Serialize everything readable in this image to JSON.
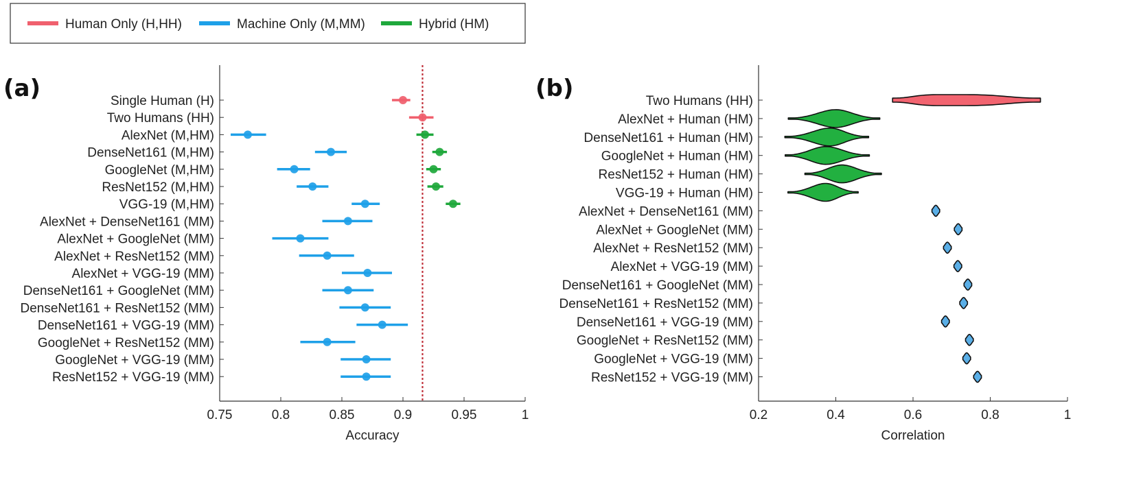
{
  "legend": {
    "placement": "top-left",
    "entries": [
      {
        "label": "Human Only (H,HH)",
        "color": "#f0606e"
      },
      {
        "label": "Machine Only (M,MM)",
        "color": "#1ea0e8"
      },
      {
        "label": "Hybrid (HM)",
        "color": "#1fa83c"
      }
    ]
  },
  "chart_data": [
    {
      "panel": "(a)",
      "type": "scatter",
      "subtype": "dot-with-error-bars",
      "xlabel": "Accuracy",
      "xlim": [
        0.75,
        1
      ],
      "xticks": [
        "0.75",
        "0.8",
        "0.85",
        "0.9",
        "0.95",
        "1"
      ],
      "reference_line": {
        "x": 0.916,
        "color": "#c0303a",
        "style": "dotted"
      },
      "categories": [
        "Single Human (H)",
        "Two Humans (HH)",
        "AlexNet (M,HM)",
        "DenseNet161 (M,HM)",
        "GoogleNet (M,HM)",
        "ResNet152 (M,HM)",
        "VGG-19 (M,HM)",
        "AlexNet + DenseNet161 (MM)",
        "AlexNet + GoogleNet (MM)",
        "AlexNet + ResNet152 (MM)",
        "AlexNet + VGG-19 (MM)",
        "DenseNet161 + GoogleNet (MM)",
        "DenseNet161 + ResNet152 (MM)",
        "DenseNet161 + VGG-19 (MM)",
        "GoogleNet + ResNet152 (MM)",
        "GoogleNet + VGG-19 (MM)",
        "ResNet152 + VGG-19 (MM)"
      ],
      "points": [
        {
          "row": 0,
          "group": "human",
          "x": 0.9,
          "lo": 0.891,
          "hi": 0.906
        },
        {
          "row": 1,
          "group": "human",
          "x": 0.916,
          "lo": 0.905,
          "hi": 0.925
        },
        {
          "row": 2,
          "group": "machine",
          "x": 0.773,
          "lo": 0.759,
          "hi": 0.788
        },
        {
          "row": 2,
          "group": "hybrid",
          "x": 0.918,
          "lo": 0.911,
          "hi": 0.925
        },
        {
          "row": 3,
          "group": "machine",
          "x": 0.841,
          "lo": 0.828,
          "hi": 0.854
        },
        {
          "row": 3,
          "group": "hybrid",
          "x": 0.93,
          "lo": 0.924,
          "hi": 0.936
        },
        {
          "row": 4,
          "group": "machine",
          "x": 0.811,
          "lo": 0.797,
          "hi": 0.824
        },
        {
          "row": 4,
          "group": "hybrid",
          "x": 0.925,
          "lo": 0.919,
          "hi": 0.931
        },
        {
          "row": 5,
          "group": "machine",
          "x": 0.826,
          "lo": 0.813,
          "hi": 0.839
        },
        {
          "row": 5,
          "group": "hybrid",
          "x": 0.927,
          "lo": 0.92,
          "hi": 0.933
        },
        {
          "row": 6,
          "group": "machine",
          "x": 0.869,
          "lo": 0.858,
          "hi": 0.881
        },
        {
          "row": 6,
          "group": "hybrid",
          "x": 0.941,
          "lo": 0.935,
          "hi": 0.947
        },
        {
          "row": 7,
          "group": "machine",
          "x": 0.855,
          "lo": 0.834,
          "hi": 0.875
        },
        {
          "row": 8,
          "group": "machine",
          "x": 0.816,
          "lo": 0.793,
          "hi": 0.839
        },
        {
          "row": 9,
          "group": "machine",
          "x": 0.838,
          "lo": 0.815,
          "hi": 0.86
        },
        {
          "row": 10,
          "group": "machine",
          "x": 0.871,
          "lo": 0.85,
          "hi": 0.891
        },
        {
          "row": 11,
          "group": "machine",
          "x": 0.855,
          "lo": 0.834,
          "hi": 0.876
        },
        {
          "row": 12,
          "group": "machine",
          "x": 0.869,
          "lo": 0.848,
          "hi": 0.89
        },
        {
          "row": 13,
          "group": "machine",
          "x": 0.883,
          "lo": 0.862,
          "hi": 0.904
        },
        {
          "row": 14,
          "group": "machine",
          "x": 0.838,
          "lo": 0.816,
          "hi": 0.861
        },
        {
          "row": 15,
          "group": "machine",
          "x": 0.87,
          "lo": 0.849,
          "hi": 0.89
        },
        {
          "row": 16,
          "group": "machine",
          "x": 0.87,
          "lo": 0.849,
          "hi": 0.89
        }
      ]
    },
    {
      "panel": "(b)",
      "type": "violin",
      "xlabel": "Correlation",
      "xlim": [
        0.2,
        1
      ],
      "xticks": [
        "0.2",
        "0.4",
        "0.6",
        "0.8",
        "1"
      ],
      "categories": [
        "Two Humans (HH)",
        "AlexNet + Human (HM)",
        "DenseNet161 + Human (HM)",
        "GoogleNet + Human (HM)",
        "ResNet152 + Human (HM)",
        "VGG-19 + Human (HM)",
        "AlexNet + DenseNet161 (MM)",
        "AlexNet + GoogleNet (MM)",
        "AlexNet + ResNet152 (MM)",
        "AlexNet + VGG-19 (MM)",
        "DenseNet161 + GoogleNet (MM)",
        "DenseNet161 + ResNet152 (MM)",
        "DenseNet161 + VGG-19 (MM)",
        "GoogleNet + ResNet152 (MM)",
        "GoogleNet + VGG-19 (MM)",
        "ResNet152 + VGG-19 (MM)"
      ],
      "distributions": [
        {
          "group": "human",
          "min": 0.547,
          "max": 0.93,
          "peak": 0.69
        },
        {
          "group": "hybrid",
          "min": 0.277,
          "max": 0.514,
          "peak": 0.4
        },
        {
          "group": "hybrid",
          "min": 0.268,
          "max": 0.485,
          "peak": 0.385
        },
        {
          "group": "hybrid",
          "min": 0.269,
          "max": 0.487,
          "peak": 0.374
        },
        {
          "group": "hybrid",
          "min": 0.32,
          "max": 0.518,
          "peak": 0.416
        },
        {
          "group": "hybrid",
          "min": 0.276,
          "max": 0.458,
          "peak": 0.374
        },
        {
          "group": "machine",
          "min": 0.649,
          "max": 0.669,
          "peak": 0.659
        },
        {
          "group": "machine",
          "min": 0.707,
          "max": 0.727,
          "peak": 0.717
        },
        {
          "group": "machine",
          "min": 0.679,
          "max": 0.699,
          "peak": 0.689
        },
        {
          "group": "machine",
          "min": 0.706,
          "max": 0.726,
          "peak": 0.716
        },
        {
          "group": "machine",
          "min": 0.732,
          "max": 0.752,
          "peak": 0.742
        },
        {
          "group": "machine",
          "min": 0.721,
          "max": 0.741,
          "peak": 0.731
        },
        {
          "group": "machine",
          "min": 0.674,
          "max": 0.694,
          "peak": 0.684
        },
        {
          "group": "machine",
          "min": 0.736,
          "max": 0.756,
          "peak": 0.746
        },
        {
          "group": "machine",
          "min": 0.729,
          "max": 0.749,
          "peak": 0.739
        },
        {
          "group": "machine",
          "min": 0.757,
          "max": 0.777,
          "peak": 0.767
        }
      ]
    }
  ],
  "colors": {
    "human": "#f0606e",
    "machine": "#1ea0e8",
    "hybrid": "#1fa83c",
    "machine_violin": "#5aaee6",
    "hybrid_violin": "#22b040",
    "human_violin": "#f26470"
  }
}
